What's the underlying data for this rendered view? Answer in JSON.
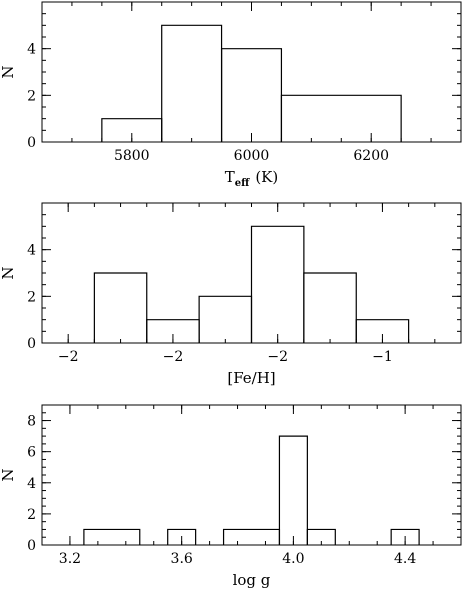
{
  "chart_data": [
    {
      "type": "histogram",
      "xlabel": "T",
      "xlabel_sub": "eff",
      "xlabel_suffix": "(K)",
      "ylabel": "N",
      "xlim": [
        5650,
        6350
      ],
      "ylim": [
        0,
        6
      ],
      "xticks": [
        5800,
        6000,
        6200
      ],
      "yticks": [
        0,
        2,
        4
      ],
      "xminor_step": 50,
      "yminor_step": 0.5,
      "bins": [
        {
          "x0": 5750,
          "x1": 5850,
          "count": 1
        },
        {
          "x0": 5850,
          "x1": 5950,
          "count": 5
        },
        {
          "x0": 5950,
          "x1": 6050,
          "count": 4
        },
        {
          "x0": 6050,
          "x1": 6250,
          "count": 2
        }
      ]
    },
    {
      "type": "histogram",
      "xlabel": "[Fe/H]",
      "ylabel": "N",
      "xlim": [
        -2.05,
        -1.25
      ],
      "ylim": [
        0,
        6
      ],
      "xticks": [
        -2.0,
        -1.8,
        -1.6,
        -1.4
      ],
      "yticks": [
        0,
        2,
        4
      ],
      "xminor_step": 0.05,
      "yminor_step": 0.5,
      "bins": [
        {
          "x0": -1.95,
          "x1": -1.85,
          "count": 3
        },
        {
          "x0": -1.85,
          "x1": -1.75,
          "count": 1
        },
        {
          "x0": -1.75,
          "x1": -1.65,
          "count": 2
        },
        {
          "x0": -1.65,
          "x1": -1.55,
          "count": 5
        },
        {
          "x0": -1.55,
          "x1": -1.45,
          "count": 3
        },
        {
          "x0": -1.45,
          "x1": -1.35,
          "count": 1
        }
      ]
    },
    {
      "type": "histogram",
      "xlabel": "log g",
      "ylabel": "N",
      "xlim": [
        3.1,
        4.6
      ],
      "ylim": [
        0,
        9
      ],
      "xticks": [
        3.2,
        3.6,
        4.0,
        4.4
      ],
      "yticks": [
        0,
        2,
        4,
        6,
        8
      ],
      "xminor_step": 0.1,
      "yminor_step": 0.5,
      "bins": [
        {
          "x0": 3.25,
          "x1": 3.45,
          "count": 1
        },
        {
          "x0": 3.55,
          "x1": 3.65,
          "count": 1
        },
        {
          "x0": 3.75,
          "x1": 3.95,
          "count": 1
        },
        {
          "x0": 3.95,
          "x1": 4.05,
          "count": 7
        },
        {
          "x0": 4.05,
          "x1": 4.15,
          "count": 1
        },
        {
          "x0": 4.35,
          "x1": 4.45,
          "count": 1
        }
      ]
    }
  ]
}
